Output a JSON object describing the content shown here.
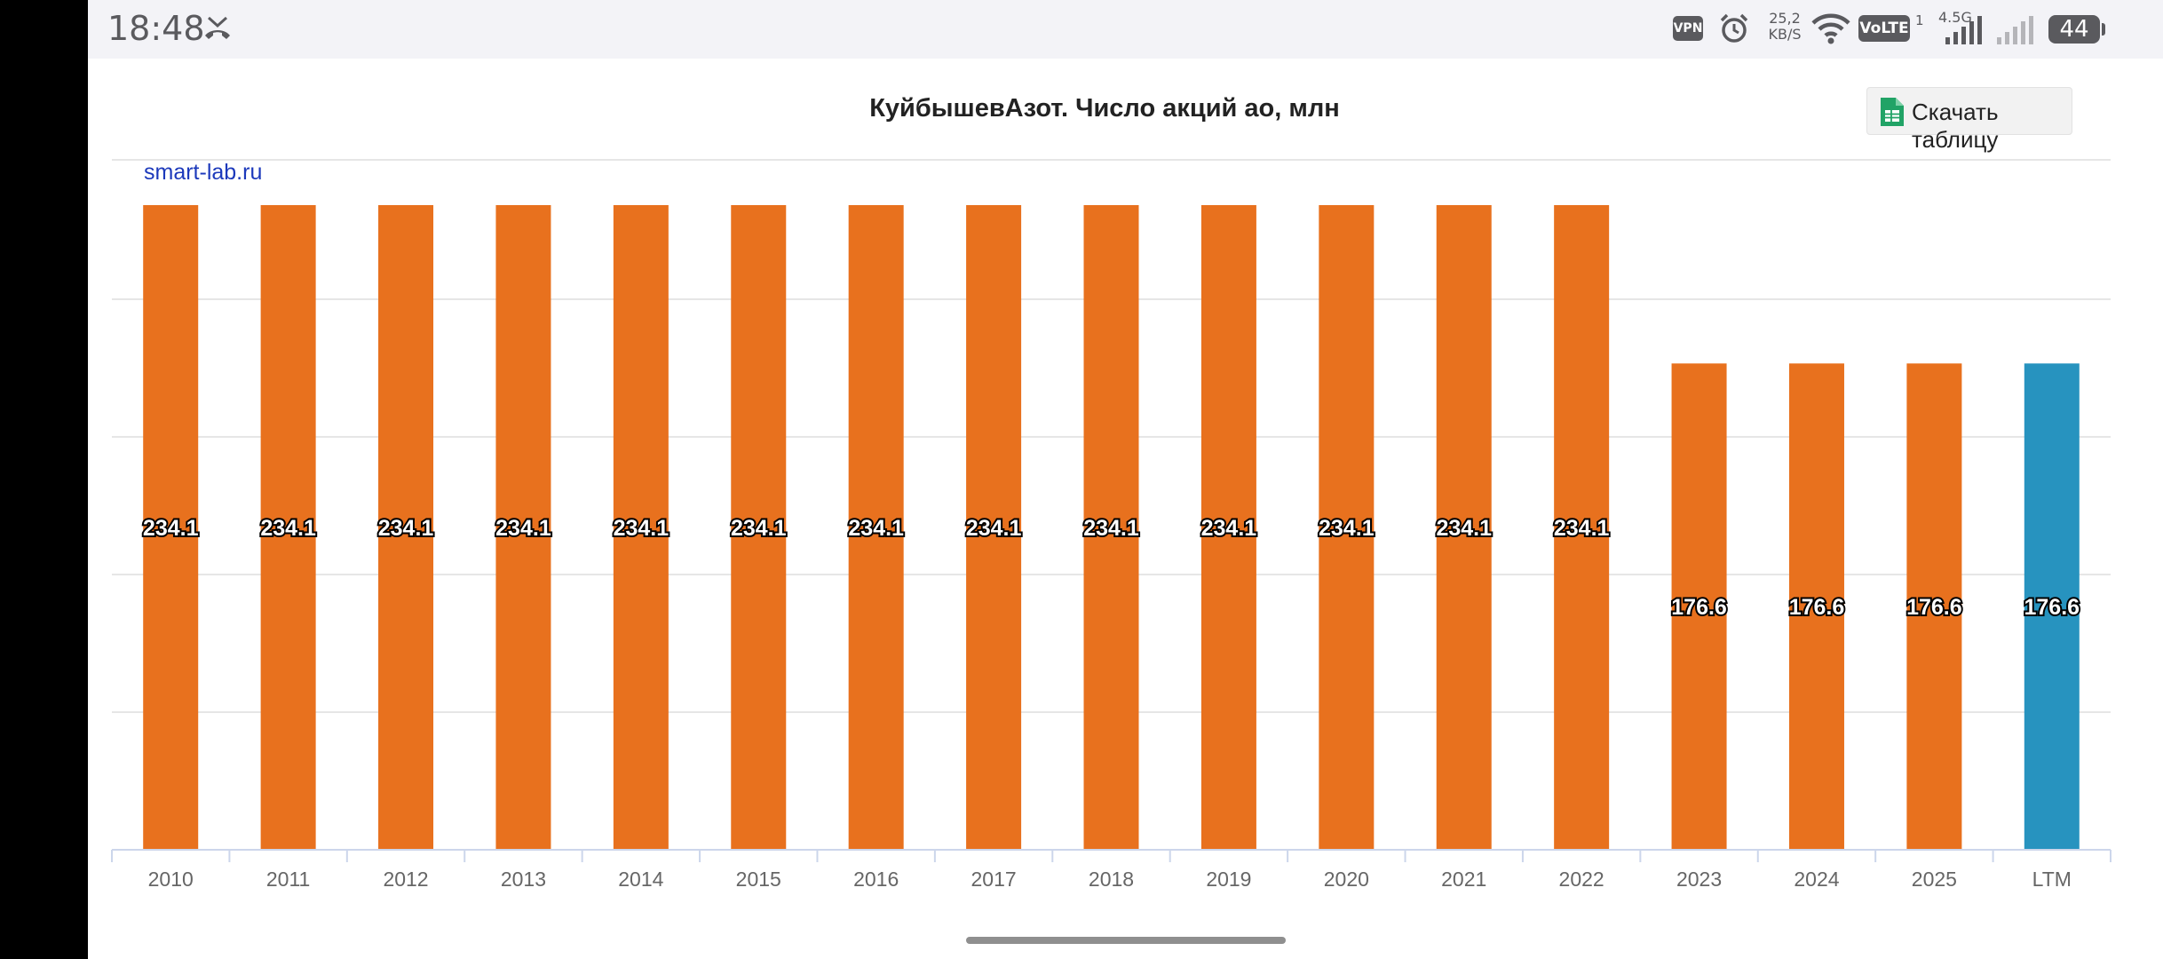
{
  "status_bar": {
    "time": "18:48",
    "call_icon": "missed-call-icon",
    "vpn": "VPN",
    "alarm_icon": "alarm-icon",
    "speed": "25,2",
    "speed_unit": "KB/S",
    "wifi_icon": "wifi-icon",
    "volte": "VoLTE",
    "sim": "1",
    "network": "4.5G",
    "signal_icon": "signal-icon",
    "battery": "44"
  },
  "header": {
    "title": "КуйбышевАзот. Число акций ао, млн",
    "download_label": "Скачать таблицу",
    "download_icon": "spreadsheet-icon",
    "download_icon_color": "#21a366"
  },
  "watermark": "smart-lab.ru",
  "colors": {
    "bar": "#e8711e",
    "highlight_bar": "#2793bf",
    "grid": "#e6e6e6",
    "axis_text": "#666666"
  },
  "chart_data": {
    "type": "bar",
    "title": "КуйбышевАзот. Число акций ао, млн",
    "categories": [
      "2010",
      "2011",
      "2012",
      "2013",
      "2014",
      "2015",
      "2016",
      "2017",
      "2018",
      "2019",
      "2020",
      "2021",
      "2022",
      "2023",
      "2024",
      "2025",
      "LTM"
    ],
    "values": [
      234.1,
      234.1,
      234.1,
      234.1,
      234.1,
      234.1,
      234.1,
      234.1,
      234.1,
      234.1,
      234.1,
      234.1,
      234.1,
      176.6,
      176.6,
      176.6,
      176.6
    ],
    "highlighted_category": "LTM",
    "ylim": [
      0,
      234.1
    ],
    "grid": true,
    "legend": "none"
  }
}
